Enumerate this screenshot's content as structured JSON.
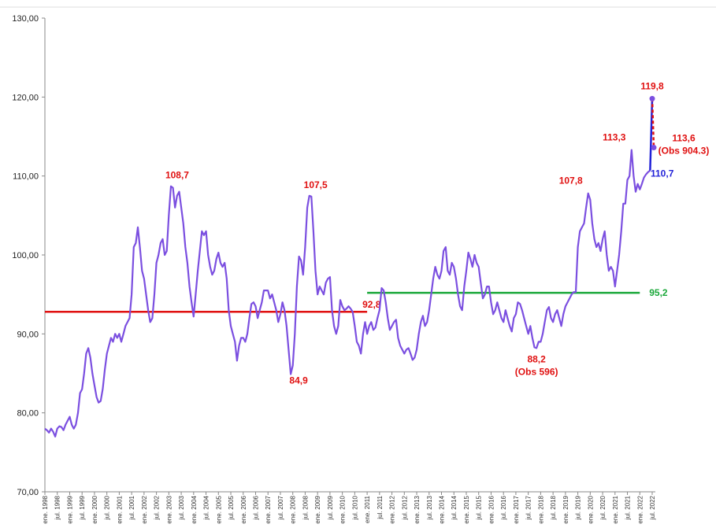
{
  "chart_data": {
    "type": "line",
    "categories": [
      "ene. 1998",
      null,
      null,
      null,
      null,
      null,
      "jul. 1998",
      null,
      null,
      null,
      null,
      null,
      "ene. 1999",
      null,
      null,
      null,
      null,
      null,
      "jul. 1999",
      null,
      null,
      null,
      null,
      null,
      "ene. 2000",
      null,
      null,
      null,
      null,
      null,
      "jul. 2000",
      null,
      null,
      null,
      null,
      null,
      "ene. 2001",
      null,
      null,
      null,
      null,
      null,
      "jul. 2001",
      null,
      null,
      null,
      null,
      null,
      "ene. 2002",
      null,
      null,
      null,
      null,
      null,
      "jul. 2002",
      null,
      null,
      null,
      null,
      null,
      "ene. 2003",
      null,
      null,
      null,
      null,
      null,
      "jul. 2003",
      null,
      null,
      null,
      null,
      null,
      "ene. 2004",
      null,
      null,
      null,
      null,
      null,
      "jul. 2004",
      null,
      null,
      null,
      null,
      null,
      "ene. 2005",
      null,
      null,
      null,
      null,
      null,
      "jul. 2005",
      null,
      null,
      null,
      null,
      null,
      "ene. 2006",
      null,
      null,
      null,
      null,
      null,
      "jul. 2006",
      null,
      null,
      null,
      null,
      null,
      "ene. 2007",
      null,
      null,
      null,
      null,
      null,
      "jul. 2007",
      null,
      null,
      null,
      null,
      null,
      "ene. 2008",
      null,
      null,
      null,
      null,
      null,
      "jul. 2008",
      null,
      null,
      null,
      null,
      null,
      "ene. 2009",
      null,
      null,
      null,
      null,
      null,
      "jul. 2009",
      null,
      null,
      null,
      null,
      null,
      "ene. 2010",
      null,
      null,
      null,
      null,
      null,
      "jul. 2010",
      null,
      null,
      null,
      null,
      null,
      "ene. 2011",
      null,
      null,
      null,
      null,
      null,
      "jul. 2011",
      null,
      null,
      null,
      null,
      null,
      "ene. 2012",
      null,
      null,
      null,
      null,
      null,
      "jul. 2012",
      null,
      null,
      null,
      null,
      null,
      "ene. 2013",
      null,
      null,
      null,
      null,
      null,
      "jul. 2013",
      null,
      null,
      null,
      null,
      null,
      "ene. 2014",
      null,
      null,
      null,
      null,
      null,
      "jul. 2014",
      null,
      null,
      null,
      null,
      null,
      "ene. 2015",
      null,
      null,
      null,
      null,
      null,
      "jul. 2015",
      null,
      null,
      null,
      null,
      null,
      "ene. 2016",
      null,
      null,
      null,
      null,
      null,
      "jul. 2016",
      null,
      null,
      null,
      null,
      null,
      "ene. 2017",
      null,
      null,
      null,
      null,
      null,
      "jul. 2017",
      null,
      null,
      null,
      null,
      null,
      "ene. 2018",
      null,
      null,
      null,
      null,
      null,
      "jul. 2018",
      null,
      null,
      null,
      null,
      null,
      "ene. 2019",
      null,
      null,
      null,
      null,
      null,
      "jul. 2019",
      null,
      null,
      null,
      null,
      null,
      "ene. 2020",
      null,
      null,
      null,
      null,
      null,
      "jul. 2020",
      null,
      null,
      null,
      null,
      null,
      "ene. 2021",
      null,
      null,
      null,
      null,
      null,
      "jul. 2021",
      null,
      null,
      null,
      null,
      null,
      "ene. 2022",
      null,
      null,
      null,
      null,
      null,
      "jul. 2022"
    ],
    "series": [
      {
        "color": "#7b4fe0",
        "values": [
          78,
          77.8,
          77.5,
          78,
          77.6,
          77,
          78,
          78.3,
          78.2,
          77.8,
          78.5,
          79,
          79.5,
          78.5,
          78,
          78.5,
          80,
          82.5,
          83,
          85,
          87.5,
          88.2,
          87,
          85,
          83.5,
          82,
          81.3,
          81.5,
          83,
          85.5,
          87.5,
          88.5,
          89.5,
          89,
          90,
          89.5,
          90,
          89,
          90,
          91,
          91.5,
          92,
          95,
          101,
          101.5,
          103.5,
          101,
          98,
          97,
          95,
          93,
          91.5,
          92,
          95,
          99,
          100,
          101.5,
          102,
          100,
          100.5,
          105,
          108.7,
          108.5,
          106,
          107.5,
          108,
          106,
          104,
          101,
          99,
          96,
          94,
          92.2,
          95,
          98,
          100.5,
          103,
          102.5,
          103,
          100,
          98.5,
          97.5,
          98,
          99.5,
          100.3,
          99,
          98.5,
          99,
          97,
          93,
          91,
          90,
          89,
          86.6,
          88.5,
          89.5,
          89.5,
          89,
          90,
          92,
          93.8,
          94,
          93.5,
          92,
          93,
          94,
          95.5,
          95.5,
          95.5,
          94.5,
          95,
          94,
          93,
          91.5,
          92.5,
          94,
          93,
          91,
          88,
          84.9,
          86,
          90,
          96,
          99.8,
          99.3,
          97.5,
          101,
          106,
          107.5,
          107.4,
          103,
          98,
          95,
          96,
          95.5,
          95,
          96.5,
          97,
          97.2,
          93,
          91,
          90,
          91,
          94.3,
          93.5,
          93,
          93.2,
          93.5,
          93.2,
          92.8,
          91,
          89,
          88.5,
          87.5,
          90,
          91.5,
          90,
          91,
          91.5,
          90.5,
          90.8,
          92,
          93,
          95.8,
          95.5,
          94,
          92,
          90.5,
          91,
          91.5,
          91.8,
          89.5,
          88.5,
          88,
          87.5,
          88,
          88.2,
          87.5,
          86.7,
          87,
          88,
          90,
          91.5,
          92.3,
          91,
          91.5,
          93,
          95,
          97,
          98.5,
          97.5,
          97,
          98,
          100.5,
          101,
          98,
          97.5,
          99,
          98.5,
          97,
          95,
          93.5,
          93,
          96,
          98,
          100.3,
          99.5,
          98.5,
          100,
          99,
          98.5,
          96.5,
          94.5,
          95,
          96,
          96,
          94,
          92.5,
          93,
          94,
          93,
          92,
          91.5,
          93,
          92,
          91,
          90.3,
          92,
          92.5,
          94,
          93.8,
          93,
          92,
          91,
          90,
          91,
          89.5,
          88.3,
          88.2,
          89,
          89,
          90,
          91.5,
          93,
          93.4,
          92,
          91.5,
          92.5,
          93,
          92,
          91,
          92.5,
          93.5,
          94,
          94.5,
          95,
          95.3,
          95.3,
          101,
          103,
          103.5,
          104,
          106,
          107.8,
          107,
          104,
          102,
          101,
          101.5,
          100.5,
          102,
          103,
          100,
          98,
          98.5,
          98,
          96,
          98,
          100,
          103,
          106.5,
          106.5,
          109.5,
          110,
          113.3,
          110,
          108,
          109,
          108.3,
          109,
          109.8,
          110.2,
          110.5,
          110.7,
          null
        ]
      }
    ],
    "jump": {
      "color": "#2222d8",
      "values": [
        110.7,
        119.8
      ],
      "label": "110,7"
    },
    "revision": {
      "color": "#e01010",
      "dashed": true,
      "values": [
        119.8,
        113.6
      ]
    },
    "hlines": [
      {
        "value": 92.8,
        "label": "92,8",
        "color": "#e01010",
        "start": 0,
        "end": 156
      },
      {
        "value": 95.2,
        "label": "95,2",
        "color": "#1aa83a",
        "start": 156,
        "end": 288
      }
    ],
    "annotations": [
      {
        "text": "108,7",
        "value": 108.7,
        "index": 61
      },
      {
        "text": "107,5",
        "value": 107.5,
        "index": 128
      },
      {
        "text": "84,9",
        "value": 84.9,
        "index": 119
      },
      {
        "text": "88,2",
        "sub": "(Obs 596)",
        "value": 88.2,
        "index": 238
      },
      {
        "text": "107,8",
        "value": 107.8,
        "index": 263
      },
      {
        "text": "113,3",
        "value": 113.3,
        "index": 284
      },
      {
        "text": "119,8",
        "value": 119.8,
        "index": 294
      },
      {
        "text": "113,6",
        "sub": "(Obs 904.3)",
        "value": 113.6,
        "index": 294
      }
    ],
    "ylim": [
      70,
      130
    ],
    "yticks": [
      {
        "value": 70,
        "label": "70,00"
      },
      {
        "value": 80,
        "label": "80,00"
      },
      {
        "value": 90,
        "label": "90,00"
      },
      {
        "value": 100,
        "label": "100,00"
      },
      {
        "value": 110,
        "label": "110,00"
      },
      {
        "value": 120,
        "label": "120,00"
      },
      {
        "value": 130,
        "label": "130,00"
      }
    ]
  }
}
